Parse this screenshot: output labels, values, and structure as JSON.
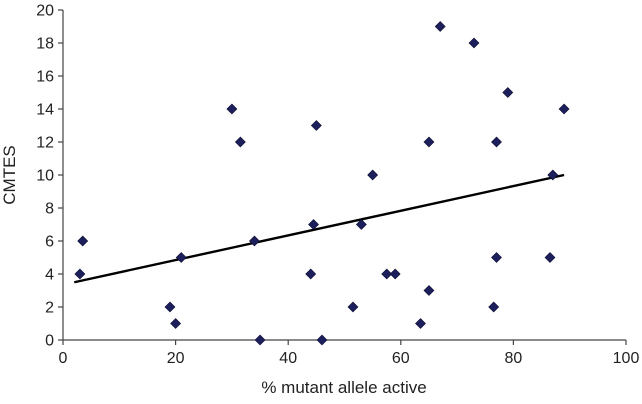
{
  "chart_data": {
    "type": "scatter",
    "title": "",
    "xlabel": "% mutant allele active",
    "ylabel": "CMTES",
    "xlim": [
      0,
      100
    ],
    "ylim": [
      0,
      20
    ],
    "x_ticks": [
      0,
      20,
      40,
      60,
      80,
      100
    ],
    "y_ticks": [
      0,
      2,
      4,
      6,
      8,
      10,
      12,
      14,
      16,
      18,
      20
    ],
    "x_tick_labels": [
      "0",
      "20",
      "40",
      "60",
      "80",
      "100"
    ],
    "y_tick_labels": [
      "0",
      "2",
      "4",
      "6",
      "8",
      "10",
      "12",
      "14",
      "16",
      "18",
      "20"
    ],
    "grid": false,
    "legend": "none",
    "colors": {
      "marker": "#1c1f5c",
      "trendline": "#000000",
      "axis": "#444444"
    },
    "series": [
      {
        "marker": "diamond",
        "points": [
          {
            "x": 3,
            "y": 4
          },
          {
            "x": 3.5,
            "y": 6
          },
          {
            "x": 19,
            "y": 2
          },
          {
            "x": 20,
            "y": 1
          },
          {
            "x": 21,
            "y": 5
          },
          {
            "x": 30,
            "y": 14
          },
          {
            "x": 31.5,
            "y": 12
          },
          {
            "x": 34,
            "y": 6
          },
          {
            "x": 35,
            "y": 0
          },
          {
            "x": 44,
            "y": 4
          },
          {
            "x": 44.5,
            "y": 7
          },
          {
            "x": 45,
            "y": 13
          },
          {
            "x": 46,
            "y": 0
          },
          {
            "x": 51.5,
            "y": 2
          },
          {
            "x": 53,
            "y": 7
          },
          {
            "x": 55,
            "y": 10
          },
          {
            "x": 57.5,
            "y": 4
          },
          {
            "x": 59,
            "y": 4
          },
          {
            "x": 63.5,
            "y": 1
          },
          {
            "x": 65,
            "y": 12
          },
          {
            "x": 65,
            "y": 3
          },
          {
            "x": 67,
            "y": 19
          },
          {
            "x": 73,
            "y": 18
          },
          {
            "x": 76.5,
            "y": 2
          },
          {
            "x": 77,
            "y": 12
          },
          {
            "x": 77,
            "y": 5
          },
          {
            "x": 79,
            "y": 15
          },
          {
            "x": 86.5,
            "y": 5
          },
          {
            "x": 87,
            "y": 10
          },
          {
            "x": 89,
            "y": 14
          }
        ]
      }
    ],
    "trendline": {
      "type": "linear",
      "x": [
        2,
        89
      ],
      "y": [
        3.5,
        10.0
      ]
    }
  }
}
